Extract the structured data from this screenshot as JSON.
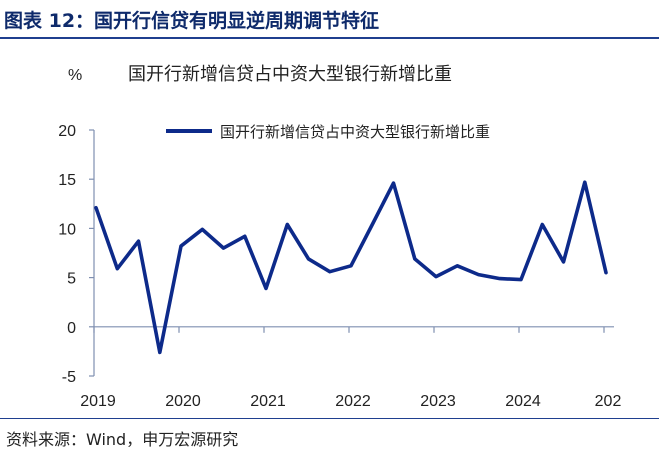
{
  "figure": {
    "title": "图表 12：国开行信贷有明显逆周期调节特征",
    "source": "资料来源：Wind，申万宏源研究"
  },
  "colors": {
    "series": "#0d2a8a",
    "axis": "#7f8fb0",
    "title_blue": "#0e2a6b"
  },
  "chart_data": {
    "type": "line",
    "title": "国开行新增信贷占中资大型银行新增比重",
    "unit_label": "%",
    "xlabel": "",
    "ylabel": "%",
    "ylim": [
      -5,
      20
    ],
    "yticks": [
      20,
      15,
      10,
      5,
      0,
      -5
    ],
    "year_labels": [
      "2019",
      "2020",
      "2021",
      "2022",
      "2023",
      "2024",
      "202"
    ],
    "grid": false,
    "legend_position": "top",
    "series": [
      {
        "name": "国开行新增信贷占中资大型银行新增比重",
        "x": [
          "2019Q1",
          "2019Q2",
          "2019Q3",
          "2019Q4",
          "2020Q1",
          "2020Q2",
          "2020Q3",
          "2020Q4",
          "2021Q1",
          "2021Q2",
          "2021Q3",
          "2021Q4",
          "2022Q1",
          "2022Q2",
          "2022Q3",
          "2022Q4",
          "2023Q1",
          "2023Q2",
          "2023Q3",
          "2023Q4",
          "2024Q1",
          "2024Q2",
          "2024Q3",
          "2024Q4",
          "2025Q1"
        ],
        "values": [
          12.1,
          5.9,
          8.7,
          -2.6,
          8.2,
          9.9,
          8.0,
          9.2,
          3.9,
          10.4,
          6.9,
          5.6,
          6.2,
          10.4,
          14.6,
          6.9,
          5.1,
          6.2,
          5.3,
          4.9,
          4.8,
          10.4,
          6.6,
          14.7,
          5.5
        ]
      }
    ]
  }
}
